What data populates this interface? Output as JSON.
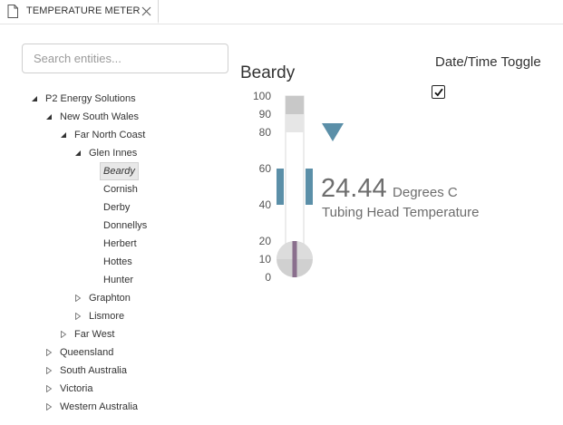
{
  "tab": {
    "title": "TEMPERATURE METER",
    "icon": "document-icon",
    "close_icon": "close-icon"
  },
  "search": {
    "placeholder": "Search entities...",
    "value": ""
  },
  "tree": {
    "items": [
      {
        "label": "P2 Energy Solutions",
        "level": 0,
        "state": "expanded"
      },
      {
        "label": "New South Wales",
        "level": 1,
        "state": "expanded"
      },
      {
        "label": "Far North Coast",
        "level": 2,
        "state": "expanded"
      },
      {
        "label": "Glen Innes",
        "level": 3,
        "state": "expanded"
      },
      {
        "label": "Beardy",
        "level": 4,
        "state": "leaf",
        "selected": true
      },
      {
        "label": "Cornish",
        "level": 4,
        "state": "leaf"
      },
      {
        "label": "Derby",
        "level": 4,
        "state": "leaf"
      },
      {
        "label": "Donnellys",
        "level": 4,
        "state": "leaf"
      },
      {
        "label": "Herbert",
        "level": 4,
        "state": "leaf"
      },
      {
        "label": "Hottes",
        "level": 4,
        "state": "leaf"
      },
      {
        "label": "Hunter",
        "level": 4,
        "state": "leaf"
      },
      {
        "label": "Graphton",
        "level": 3,
        "state": "collapsed"
      },
      {
        "label": "Lismore",
        "level": 3,
        "state": "collapsed"
      },
      {
        "label": "Far West",
        "level": 2,
        "state": "collapsed"
      },
      {
        "label": "Queensland",
        "level": 1,
        "state": "collapsed"
      },
      {
        "label": "South Australia",
        "level": 1,
        "state": "collapsed"
      },
      {
        "label": "Victoria",
        "level": 1,
        "state": "collapsed"
      },
      {
        "label": "Western Australia",
        "level": 1,
        "state": "collapsed"
      }
    ]
  },
  "gauge": {
    "title": "Beardy",
    "scale": [
      "100",
      "90",
      "80",
      "60",
      "40",
      "20",
      "10",
      "0"
    ],
    "value": "24.44",
    "unit": "Degrees C",
    "measurement": "Tubing Head Temperature",
    "target_marker": 80,
    "band_low": 40,
    "band_high": 60,
    "colors": {
      "band": "#5b8fa8",
      "marker": "#5b8fa8",
      "mercury": "#8a6f8d",
      "scale_dark": "#c8c8c8",
      "scale_light": "#e6e6e6",
      "bulb": "#cfcfcf"
    }
  },
  "datetime_toggle": {
    "label": "Date/Time Toggle",
    "checked": true
  }
}
